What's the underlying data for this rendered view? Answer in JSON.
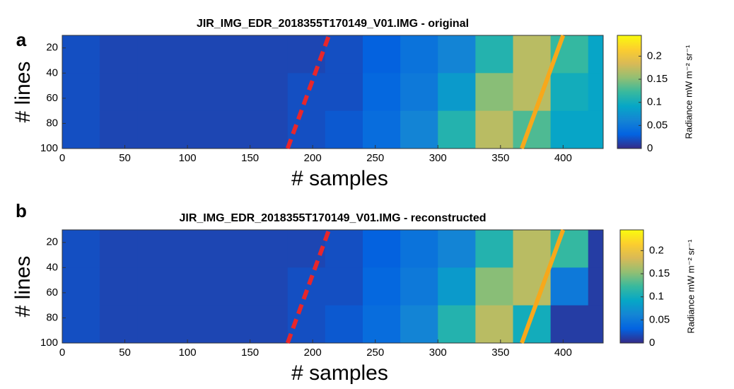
{
  "chart_data": [
    {
      "type": "heatmap",
      "panel_label": "a",
      "title": "JIR_IMG_EDR_2018355T170149_V01.IMG - original",
      "xlabel": "# samples",
      "ylabel": "# lines",
      "colorbar_label": "Radiance mW m⁻² sr⁻¹",
      "xlim": [
        0,
        432
      ],
      "ylim": [
        100,
        10
      ],
      "xticks": [
        0,
        50,
        100,
        150,
        200,
        250,
        300,
        350,
        400
      ],
      "yticks": [
        20,
        40,
        60,
        80,
        100
      ],
      "xbins": [
        0,
        30,
        60,
        90,
        120,
        150,
        180,
        210,
        240,
        270,
        300,
        330,
        360,
        390,
        420,
        432
      ],
      "ybins": [
        10,
        40,
        70,
        100
      ],
      "z": [
        [
          0.02,
          0.015,
          0.015,
          0.015,
          0.015,
          0.015,
          0.015,
          0.02,
          0.03,
          0.045,
          0.06,
          0.11,
          0.17,
          0.12,
          0.09
        ],
        [
          0.02,
          0.015,
          0.015,
          0.015,
          0.015,
          0.015,
          0.02,
          0.02,
          0.035,
          0.05,
          0.08,
          0.15,
          0.17,
          0.1,
          0.09
        ],
        [
          0.02,
          0.015,
          0.015,
          0.015,
          0.015,
          0.015,
          0.02,
          0.025,
          0.04,
          0.06,
          0.11,
          0.17,
          0.13,
          0.09,
          0.09
        ]
      ],
      "clim": [
        0,
        0.245
      ],
      "cticks": [
        0,
        0.05,
        0.1,
        0.15,
        0.2
      ],
      "colormap": [
        "#352a87",
        "#0363e1",
        "#1485d4",
        "#06a7c6",
        "#38b99e",
        "#92bf73",
        "#d9ba56",
        "#fcce2e",
        "#f9fb0e"
      ],
      "lines": [
        {
          "x": [
            180,
            213
          ],
          "y": [
            100,
            10
          ],
          "color": "#e8262b",
          "dashed": true
        },
        {
          "x": [
            367,
            400
          ],
          "y": [
            100,
            10
          ],
          "color": "#f7a81b",
          "dashed": false
        }
      ]
    },
    {
      "type": "heatmap",
      "panel_label": "b",
      "title": "JIR_IMG_EDR_2018355T170149_V01.IMG - reconstructed",
      "xlabel": "# samples",
      "ylabel": "# lines",
      "colorbar_label": "Radiance mW m⁻² sr⁻¹",
      "xlim": [
        0,
        432
      ],
      "ylim": [
        100,
        10
      ],
      "xticks": [
        0,
        50,
        100,
        150,
        200,
        250,
        300,
        350,
        400
      ],
      "yticks": [
        20,
        40,
        60,
        80,
        100
      ],
      "xbins": [
        0,
        30,
        60,
        90,
        120,
        150,
        180,
        210,
        240,
        270,
        300,
        330,
        360,
        390,
        420,
        432
      ],
      "ybins": [
        10,
        40,
        70,
        100
      ],
      "z": [
        [
          0.02,
          0.015,
          0.015,
          0.015,
          0.015,
          0.015,
          0.015,
          0.02,
          0.03,
          0.045,
          0.06,
          0.11,
          0.17,
          0.12,
          0.01
        ],
        [
          0.02,
          0.015,
          0.015,
          0.015,
          0.015,
          0.015,
          0.02,
          0.02,
          0.035,
          0.05,
          0.08,
          0.15,
          0.17,
          0.05,
          0.01
        ],
        [
          0.02,
          0.015,
          0.015,
          0.015,
          0.015,
          0.015,
          0.02,
          0.025,
          0.04,
          0.06,
          0.11,
          0.17,
          0.1,
          0.01,
          0.01
        ]
      ],
      "clim": [
        0,
        0.245
      ],
      "cticks": [
        0,
        0.05,
        0.1,
        0.15,
        0.2
      ],
      "colormap": [
        "#352a87",
        "#0363e1",
        "#1485d4",
        "#06a7c6",
        "#38b99e",
        "#92bf73",
        "#d9ba56",
        "#fcce2e",
        "#f9fb0e"
      ],
      "lines": [
        {
          "x": [
            180,
            213
          ],
          "y": [
            100,
            10
          ],
          "color": "#e8262b",
          "dashed": true
        },
        {
          "x": [
            367,
            400
          ],
          "y": [
            100,
            10
          ],
          "color": "#f7a81b",
          "dashed": false
        }
      ]
    }
  ]
}
